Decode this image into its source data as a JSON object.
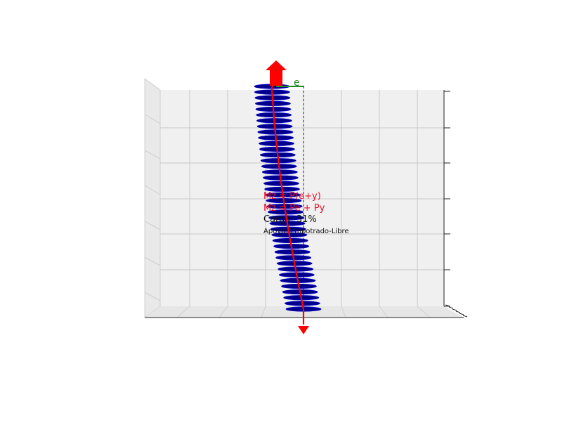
{
  "figure": {
    "eccentricity_label": "e",
    "annotations": {
      "line1": "Mz = P(e+y)",
      "line2": "Mz = Pe + Py",
      "line3": "Carga: 31%",
      "line4": "Apoyo: Empotrado-Libre"
    },
    "load_percent": 31,
    "disc_count": 40,
    "colors": {
      "discs": "#00008b",
      "discs_highlight": "#0000cd",
      "load_arrow": "#ff0000",
      "eccentricity_line": "#228b22",
      "annotation_red": "#e8102a",
      "annotation_black": "#111111",
      "pane_back": "#f0f0f0",
      "grid": "#c8c8c8",
      "axis": "#222222"
    }
  }
}
